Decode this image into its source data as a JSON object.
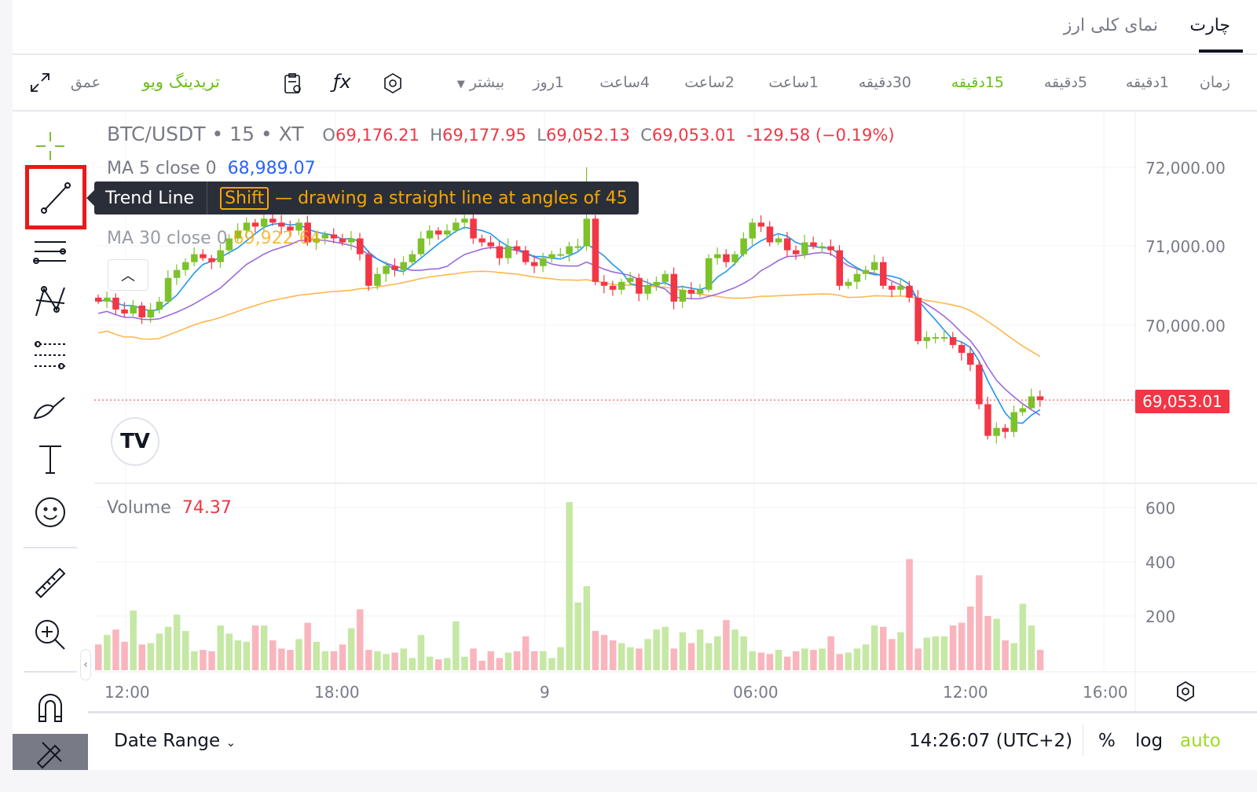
{
  "tabs": [
    {
      "label": "چارت",
      "active": true
    },
    {
      "label": "نمای کلی ارز",
      "active": false
    }
  ],
  "timeframes": {
    "time_label": "زمان",
    "items": [
      "1دقیقه",
      "5دقیقه",
      "15دقیقه",
      "30دقیقه",
      "1ساعت",
      "2ساعت",
      "4ساعت",
      "1روز"
    ],
    "active": "15دقیقه",
    "more": "بیشتر",
    "tradingview": "تریدینگ ویو",
    "depth": "عمق"
  },
  "legend": {
    "symbol": "BTC/USDT • 15 • XT",
    "o_label": "O",
    "o": "69,176.21",
    "h_label": "H",
    "h": "69,177.95",
    "l_label": "L",
    "l": "69,052.13",
    "c_label": "C",
    "c": "69,053.01",
    "change": "-129.58 (−0.19%)",
    "ma5_label": "MA 5 close 0",
    "ma5": "68,989.07",
    "ma30_label": "MA 30 close 0",
    "ma30": "69,922.64",
    "volume_label": "Volume",
    "volume": "74.37"
  },
  "tooltip": {
    "title": "Trend Line",
    "key": "Shift",
    "desc": "— drawing a straight line at angles of 45"
  },
  "price_axis": [
    "72,000.00",
    "71,000.00",
    "70,000.00"
  ],
  "volume_axis": [
    "600",
    "400",
    "200"
  ],
  "time_axis": [
    "12:00",
    "18:00",
    "9",
    "06:00",
    "12:00",
    "16:00"
  ],
  "last_price": "69,053.01",
  "bottom": {
    "date_range": "Date Range",
    "clock": "14:26:07 (UTC+2)",
    "percent": "%",
    "log": "log",
    "auto": "auto"
  },
  "colors": {
    "up": "#7cc22a",
    "down": "#f23645",
    "ma5": "#2196f3",
    "ma10": "#9c6ade",
    "ma30": "#ffb74d",
    "accent": "#6abf1b"
  },
  "chart_data": {
    "type": "candlestick",
    "closes": [
      70300,
      70350,
      70200,
      70150,
      70250,
      70100,
      70200,
      70300,
      70600,
      70700,
      70800,
      70900,
      70850,
      70800,
      70950,
      71100,
      71200,
      71300,
      71250,
      71350,
      71300,
      71250,
      71200,
      71300,
      71050,
      71100,
      71150,
      71100,
      71050,
      71100,
      70900,
      70500,
      70650,
      70750,
      70700,
      70800,
      70900,
      71100,
      71200,
      71150,
      71200,
      71300,
      71350,
      71100,
      71050,
      71000,
      70850,
      71000,
      70950,
      70800,
      70750,
      70850,
      70900,
      70900,
      71000,
      71000,
      71350,
      70550,
      70500,
      70450,
      70550,
      70600,
      70400,
      70500,
      70550,
      70650,
      70300,
      70450,
      70400,
      70450,
      70850,
      70900,
      70800,
      70900,
      71100,
      71300,
      71250,
      71050,
      71100,
      70950,
      70900,
      71050,
      71000,
      71000,
      70950,
      70500,
      70550,
      70650,
      70700,
      70800,
      70500,
      70450,
      70500,
      70350,
      69800,
      69850,
      69850,
      69850,
      69750,
      69650,
      69500,
      69000,
      68600,
      68700,
      68650,
      68900,
      68950,
      69100,
      69053
    ],
    "volumes": [
      95,
      130,
      150,
      105,
      220,
      95,
      100,
      135,
      160,
      205,
      145,
      70,
      75,
      70,
      165,
      135,
      110,
      105,
      165,
      165,
      110,
      80,
      75,
      115,
      175,
      105,
      70,
      70,
      95,
      155,
      225,
      75,
      70,
      60,
      65,
      80,
      45,
      130,
      50,
      40,
      45,
      180,
      50,
      80,
      35,
      70,
      45,
      65,
      70,
      125,
      70,
      70,
      45,
      85,
      620,
      250,
      310,
      145,
      130,
      110,
      100,
      85,
      80,
      115,
      150,
      160,
      80,
      140,
      100,
      150,
      100,
      125,
      185,
      150,
      125,
      70,
      65,
      60,
      75,
      50,
      70,
      80,
      75,
      80,
      125,
      60,
      65,
      80,
      95,
      165,
      160,
      115,
      140,
      410,
      80,
      120,
      125,
      125,
      165,
      175,
      235,
      350,
      200,
      190,
      110,
      100,
      245,
      165,
      75
    ],
    "ylim": [
      68000,
      72500
    ],
    "ma_periods": [
      5,
      10,
      30
    ]
  }
}
